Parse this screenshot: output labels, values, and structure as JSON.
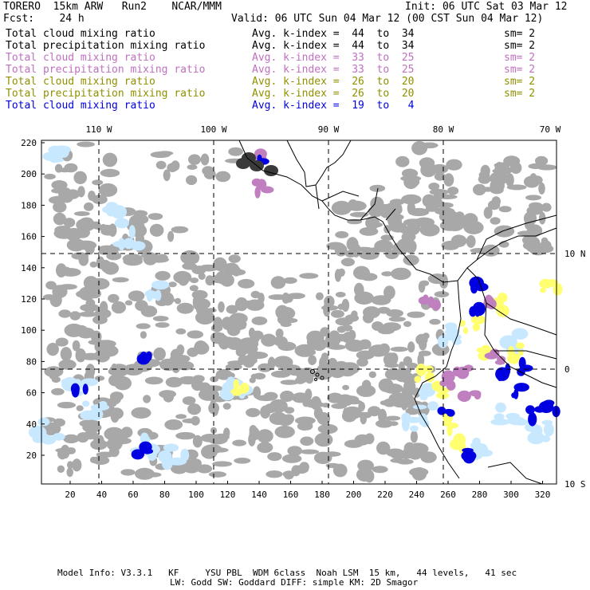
{
  "header": {
    "left1": "TORERO  15km ARW   Run2    NCAR/MMM",
    "left2": "Fcst:    24 h",
    "init": "Init: 06 UTC Sat 03 Mar 12",
    "valid": "Valid: 06 UTC Sun 04 Mar 12 (00 CST Sun 04 Mar 12)"
  },
  "legend": [
    {
      "field": "Total cloud mixing ratio",
      "k": "Avg. k-index =  44  to  34",
      "sm": "sm= 2",
      "color": "#000000"
    },
    {
      "field": "Total precipitation mixing ratio",
      "k": "Avg. k-index =  44  to  34",
      "sm": "sm= 2",
      "color": "#000000"
    },
    {
      "field": "Total cloud mixing ratio",
      "k": "Avg. k-index =  33  to  25",
      "sm": "sm= 2",
      "color": "#c070c0"
    },
    {
      "field": "Total precipitation mixing ratio",
      "k": "Avg. k-index =  33  to  25",
      "sm": "sm= 2",
      "color": "#c070c0"
    },
    {
      "field": "Total cloud mixing ratio",
      "k": "Avg. k-index =  26  to  20",
      "sm": "sm= 2",
      "color": "#909000"
    },
    {
      "field": "Total precipitation mixing ratio",
      "k": "Avg. k-index =  26  to  20",
      "sm": "sm= 2",
      "color": "#909000"
    },
    {
      "field": "Total cloud mixing ratio",
      "k": "Avg. k-index =  19  to   4",
      "sm": "",
      "color": "#0000e0"
    }
  ],
  "map": {
    "lon_labels": [
      "110 W",
      "100 W",
      "90 W",
      "80 W",
      "70 W"
    ],
    "lat_labels": [
      "10 N",
      "0",
      "10 S"
    ],
    "y_ticks": [
      "20",
      "40",
      "60",
      "80",
      "100",
      "120",
      "140",
      "160",
      "180",
      "200",
      "220"
    ],
    "x_ticks": [
      "20",
      "40",
      "60",
      "80",
      "100",
      "120",
      "140",
      "160",
      "180",
      "200",
      "220",
      "240",
      "260",
      "280",
      "300",
      "320"
    ],
    "colors": {
      "gray": "#a8a8a8",
      "dark": "#3a3a3a",
      "purple": "#c080c0",
      "yellow": "#ffff70",
      "lightblue": "#c8e8ff",
      "blue": "#0000e0"
    }
  },
  "footer": {
    "line1": "Model Info: V3.3.1   KF     YSU PBL  WDM 6class  Noah LSM  15 km,   44 levels,   41 sec",
    "line2": "LW: Godd SW: Goddard DIFF: simple KM: 2D Smagor"
  }
}
